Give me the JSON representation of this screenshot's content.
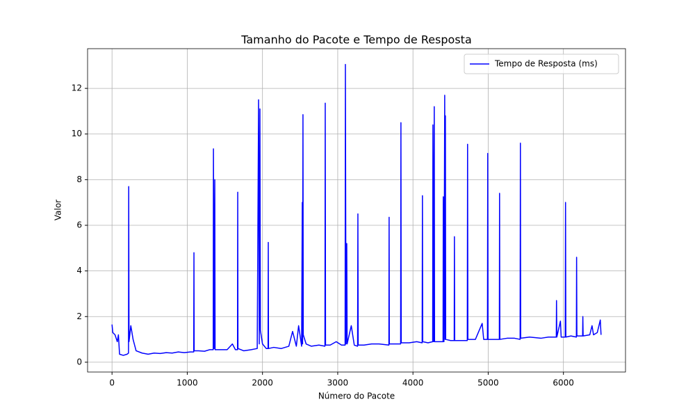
{
  "chart_data": {
    "type": "line",
    "title": "Tamanho do Pacote e Tempo de Resposta",
    "xlabel": "Número do Pacote",
    "ylabel": "Valor",
    "x": [
      0,
      10,
      40,
      70,
      85,
      100,
      150,
      200,
      219,
      222,
      226,
      250,
      280,
      320,
      400,
      480,
      560,
      640,
      720,
      800,
      880,
      960,
      1040,
      1086,
      1089,
      1092,
      1150,
      1230,
      1300,
      1345,
      1348,
      1357,
      1366,
      1370,
      1450,
      1530,
      1600,
      1640,
      1668,
      1671,
      1674,
      1750,
      1850,
      1930,
      1948,
      1957,
      1966,
      1972,
      2000,
      2050,
      2074,
      2077,
      2080,
      2150,
      2250,
      2350,
      2400,
      2450,
      2480,
      2520,
      2529,
      2533,
      2538,
      2542,
      2580,
      2650,
      2750,
      2830,
      2834,
      2838,
      2900,
      2980,
      3050,
      3098,
      3102,
      3110,
      3120,
      3125,
      3180,
      3220,
      3264,
      3268,
      3272,
      3350,
      3450,
      3550,
      3680,
      3683,
      3686,
      3760,
      3836,
      3840,
      3844,
      3950,
      4050,
      4122,
      4126,
      4130,
      4200,
      4262,
      4265,
      4274,
      4283,
      4287,
      4350,
      4400,
      4403,
      4412,
      4422,
      4427,
      4431,
      4435,
      4500,
      4548,
      4551,
      4555,
      4650,
      4722,
      4726,
      4730,
      4830,
      4920,
      4940,
      4990,
      4994,
      4998,
      5080,
      5148,
      5151,
      5155,
      5250,
      5350,
      5424,
      5428,
      5432,
      5550,
      5700,
      5800,
      5905,
      5908,
      5912,
      5960,
      5970,
      6024,
      6028,
      6032,
      6100,
      6172,
      6175,
      6179,
      6255,
      6258,
      6262,
      6350,
      6380,
      6400,
      6450,
      6490,
      6500
    ],
    "series": [
      {
        "name": "Tempo de Resposta (ms)",
        "color": "#0000ff",
        "values": [
          1.65,
          1.3,
          1.2,
          0.9,
          1.2,
          0.35,
          0.3,
          0.35,
          0.4,
          7.7,
          0.9,
          1.6,
          1.0,
          0.5,
          0.4,
          0.35,
          0.4,
          0.38,
          0.42,
          0.4,
          0.45,
          0.42,
          0.45,
          0.45,
          4.8,
          0.5,
          0.5,
          0.48,
          0.55,
          0.55,
          9.35,
          0.6,
          8.0,
          0.55,
          0.55,
          0.55,
          0.8,
          0.55,
          0.55,
          7.45,
          0.6,
          0.5,
          0.55,
          0.6,
          11.5,
          0.8,
          11.1,
          1.4,
          0.8,
          0.6,
          0.6,
          5.25,
          0.6,
          0.65,
          0.6,
          0.7,
          1.35,
          0.7,
          1.6,
          0.7,
          7.0,
          0.8,
          10.85,
          1.2,
          0.8,
          0.7,
          0.75,
          0.7,
          11.35,
          0.75,
          0.75,
          0.9,
          0.75,
          0.75,
          13.05,
          0.8,
          5.2,
          0.8,
          1.6,
          0.75,
          0.7,
          6.5,
          0.75,
          0.75,
          0.8,
          0.8,
          0.75,
          6.35,
          0.8,
          0.8,
          0.8,
          10.5,
          0.85,
          0.85,
          0.9,
          0.85,
          7.3,
          0.9,
          0.85,
          0.9,
          10.4,
          0.9,
          11.2,
          0.9,
          0.9,
          0.9,
          7.25,
          0.9,
          11.7,
          1.0,
          10.8,
          1.0,
          0.95,
          0.95,
          5.5,
          0.95,
          0.95,
          0.95,
          9.55,
          1.0,
          1.0,
          1.7,
          1.0,
          1.0,
          9.15,
          1.0,
          1.0,
          1.0,
          7.4,
          1.0,
          1.05,
          1.05,
          1.0,
          9.6,
          1.05,
          1.1,
          1.05,
          1.1,
          1.1,
          2.7,
          1.1,
          1.8,
          1.1,
          1.1,
          7.0,
          1.1,
          1.15,
          1.1,
          4.6,
          1.15,
          1.15,
          2.0,
          1.15,
          1.2,
          1.6,
          1.2,
          1.3,
          1.85,
          1.2
        ]
      }
    ],
    "xlim": [
      -325,
      6825
    ],
    "xticks": [
      0,
      1000,
      2000,
      3000,
      4000,
      5000,
      6000
    ],
    "ylim": [
      -0.43,
      13.74
    ],
    "yticks": [
      0,
      2,
      4,
      6,
      8,
      10,
      12
    ],
    "grid": true,
    "legend": "upper right"
  }
}
